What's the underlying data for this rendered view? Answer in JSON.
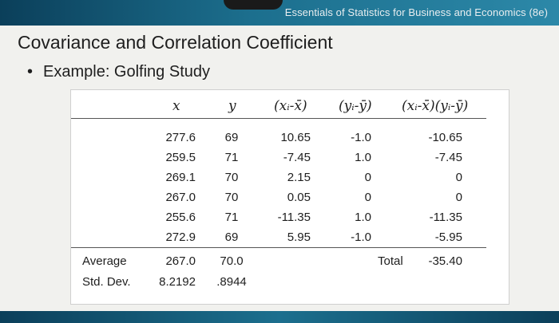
{
  "header": {
    "course": "Essentials of Statistics for Business and Economics (8e)"
  },
  "slide": {
    "title": "Covariance and Correlation Coefficient",
    "bullet_symbol": "•",
    "bullet": "Example: Golfing Study"
  },
  "table": {
    "headers": [
      "x",
      "y",
      "(xᵢ-x̄)",
      "(yᵢ-ȳ)",
      "(xᵢ-x̄)(yᵢ-ȳ)"
    ],
    "rows": [
      [
        "277.6",
        "69",
        "10.65",
        "-1.0",
        "-10.65"
      ],
      [
        "259.5",
        "71",
        "-7.45",
        "1.0",
        "-7.45"
      ],
      [
        "269.1",
        "70",
        "2.15",
        "0",
        "0"
      ],
      [
        "267.0",
        "70",
        "0.05",
        "0",
        "0"
      ],
      [
        "255.6",
        "71",
        "-11.35",
        "1.0",
        "-11.35"
      ],
      [
        "272.9",
        "69",
        "5.95",
        "-1.0",
        "-5.95"
      ]
    ],
    "average": {
      "label": "Average",
      "x": "267.0",
      "y": "70.0"
    },
    "std_dev": {
      "label": "Std. Dev.",
      "x": "8.2192",
      "y": ".8944"
    },
    "total": {
      "label": "Total",
      "value": "-35.40"
    }
  }
}
